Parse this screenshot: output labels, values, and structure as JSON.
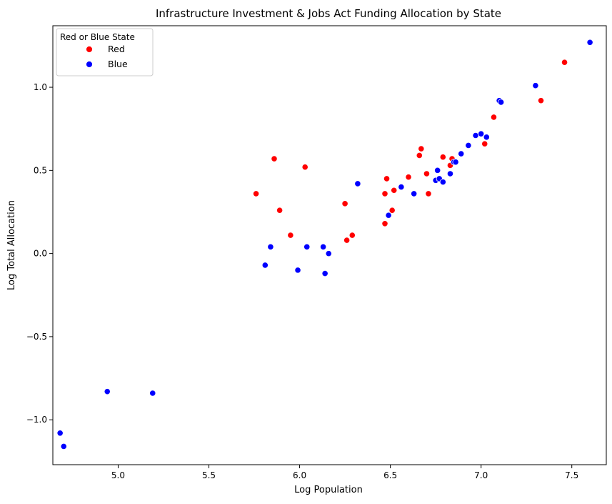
{
  "chart_data": {
    "type": "scatter",
    "title": "Infrastructure Investment & Jobs Act Funding Allocation by State",
    "xlabel": "Log Population",
    "ylabel": "Log Total Allocation",
    "xlim": [
      4.64,
      7.69
    ],
    "ylim": [
      -1.27,
      1.37
    ],
    "xticks": [
      5.0,
      5.5,
      6.0,
      6.5,
      7.0,
      7.5
    ],
    "xtick_labels": [
      "5.0",
      "5.5",
      "6.0",
      "6.5",
      "7.0",
      "7.5"
    ],
    "yticks": [
      -1.0,
      -0.5,
      0.0,
      0.5,
      1.0
    ],
    "ytick_labels": [
      "−1.0",
      "−0.5",
      "0.0",
      "0.5",
      "1.0"
    ],
    "grid": false,
    "legend": {
      "title": "Red or Blue State",
      "position": "top-left",
      "entries": [
        {
          "label": "Red",
          "color": "#ff0000"
        },
        {
          "label": "Blue",
          "color": "#0000ff"
        }
      ]
    },
    "series": [
      {
        "name": "Red",
        "color": "#ff0000",
        "points": [
          [
            5.76,
            0.36
          ],
          [
            5.86,
            0.57
          ],
          [
            5.89,
            0.26
          ],
          [
            5.95,
            0.11
          ],
          [
            6.03,
            0.52
          ],
          [
            6.25,
            0.3
          ],
          [
            6.26,
            0.08
          ],
          [
            6.29,
            0.11
          ],
          [
            6.47,
            0.18
          ],
          [
            6.47,
            0.36
          ],
          [
            6.48,
            0.45
          ],
          [
            6.51,
            0.26
          ],
          [
            6.52,
            0.38
          ],
          [
            6.6,
            0.46
          ],
          [
            6.66,
            0.59
          ],
          [
            6.67,
            0.63
          ],
          [
            6.7,
            0.48
          ],
          [
            6.71,
            0.36
          ],
          [
            6.79,
            0.58
          ],
          [
            6.83,
            0.53
          ],
          [
            6.84,
            0.57
          ],
          [
            7.02,
            0.66
          ],
          [
            7.07,
            0.82
          ],
          [
            7.33,
            0.92
          ],
          [
            7.46,
            1.15
          ]
        ]
      },
      {
        "name": "Blue",
        "color": "#0000ff",
        "points": [
          [
            4.68,
            -1.08
          ],
          [
            4.7,
            -1.16
          ],
          [
            4.94,
            -0.83
          ],
          [
            5.19,
            -0.84
          ],
          [
            5.81,
            -0.07
          ],
          [
            5.84,
            0.04
          ],
          [
            5.99,
            -0.1
          ],
          [
            6.04,
            0.04
          ],
          [
            6.13,
            0.04
          ],
          [
            6.14,
            -0.12
          ],
          [
            6.16,
            0.0
          ],
          [
            6.32,
            0.42
          ],
          [
            6.49,
            0.23
          ],
          [
            6.56,
            0.4
          ],
          [
            6.63,
            0.36
          ],
          [
            6.75,
            0.44
          ],
          [
            6.76,
            0.5
          ],
          [
            6.77,
            0.45
          ],
          [
            6.79,
            0.43
          ],
          [
            6.83,
            0.48
          ],
          [
            6.85,
            0.55
          ],
          [
            6.86,
            0.55
          ],
          [
            6.89,
            0.6
          ],
          [
            6.93,
            0.65
          ],
          [
            6.97,
            0.71
          ],
          [
            7.0,
            0.72
          ],
          [
            7.03,
            0.7
          ],
          [
            7.1,
            0.92
          ],
          [
            7.11,
            0.91
          ],
          [
            7.3,
            1.01
          ],
          [
            7.6,
            1.27
          ]
        ]
      }
    ]
  }
}
